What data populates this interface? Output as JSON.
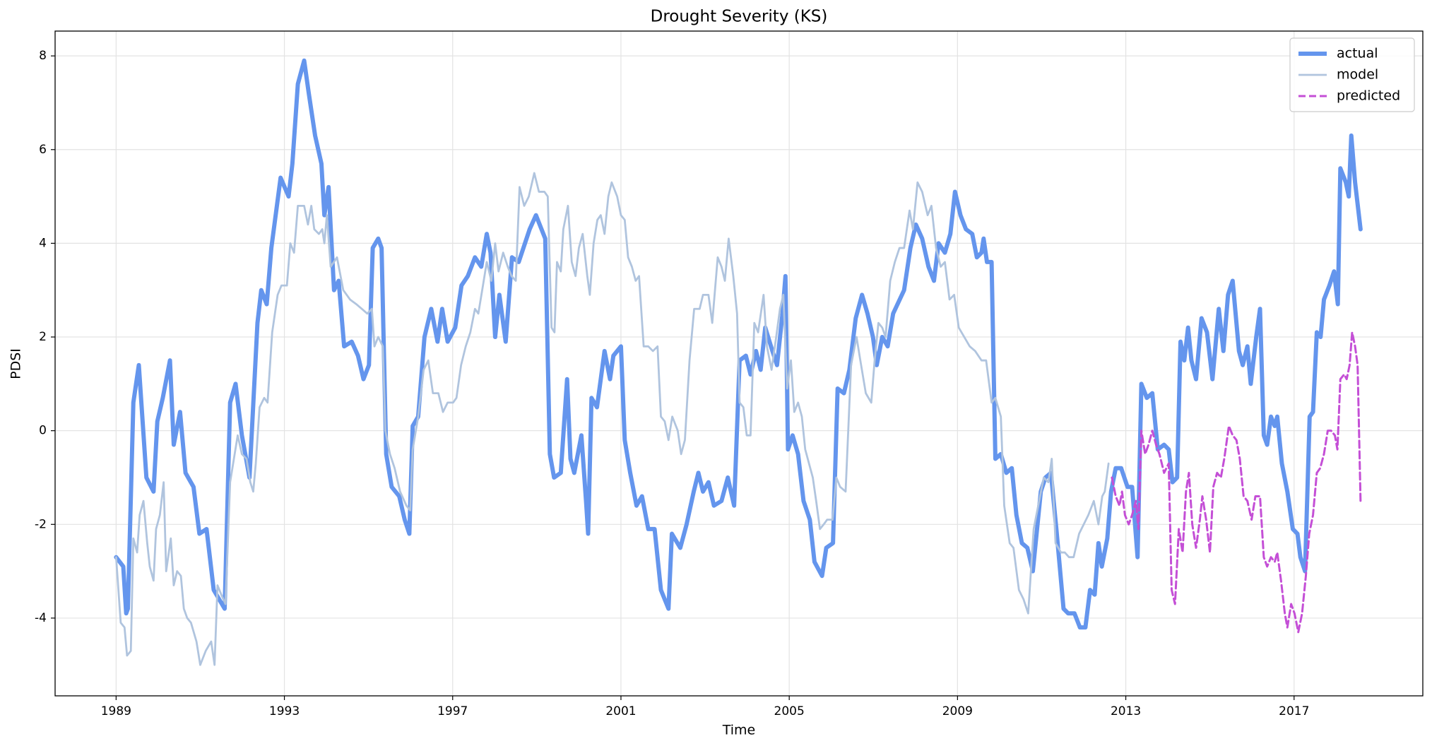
{
  "chart_data": {
    "type": "line",
    "title": "Drought Severity (KS)",
    "x_label": "Time",
    "y_label": "PDSI",
    "xlim": [
      1987.55,
      2020.06
    ],
    "ylim": [
      -5.66,
      8.53
    ],
    "xticks": [
      1989,
      1993,
      1997,
      2001,
      2005,
      2009,
      2013,
      2017
    ],
    "yticks": [
      -4,
      -2,
      0,
      2,
      4,
      6,
      8
    ],
    "grid": true,
    "legend": "upper right",
    "series": [
      {
        "name": "actual",
        "color": "#6495ed",
        "linestyle": "solid",
        "x": [
          1989.0,
          1989.17,
          1989.24,
          1989.28,
          1989.41,
          1989.54,
          1989.72,
          1989.89,
          1989.98,
          1990.11,
          1990.28,
          1990.37,
          1990.52,
          1990.65,
          1990.84,
          1990.98,
          1991.15,
          1991.32,
          1991.58,
          1991.71,
          1991.84,
          1991.99,
          1992.17,
          1992.36,
          1992.45,
          1992.58,
          1992.69,
          1992.91,
          1993.1,
          1993.19,
          1993.32,
          1993.47,
          1993.58,
          1993.73,
          1993.88,
          1993.95,
          1994.05,
          1994.18,
          1994.29,
          1994.42,
          1994.6,
          1994.75,
          1994.88,
          1995.01,
          1995.1,
          1995.23,
          1995.31,
          1995.42,
          1995.55,
          1995.73,
          1995.86,
          1995.97,
          1996.05,
          1996.18,
          1996.33,
          1996.49,
          1996.64,
          1996.75,
          1996.88,
          1997.06,
          1997.21,
          1997.36,
          1997.53,
          1997.68,
          1997.81,
          1997.9,
          1998.01,
          1998.11,
          1998.26,
          1998.41,
          1998.57,
          1998.83,
          1998.98,
          1999.2,
          1999.31,
          1999.41,
          1999.57,
          1999.72,
          1999.8,
          1999.89,
          2000.06,
          2000.17,
          2000.22,
          2000.3,
          2000.43,
          2000.61,
          2000.74,
          2000.82,
          2001.0,
          2001.09,
          2001.22,
          2001.37,
          2001.5,
          2001.65,
          2001.8,
          2001.95,
          2002.13,
          2002.21,
          2002.41,
          2002.56,
          2002.73,
          2002.84,
          2002.95,
          2003.08,
          2003.21,
          2003.39,
          2003.54,
          2003.69,
          2003.82,
          2003.97,
          2004.08,
          2004.21,
          2004.32,
          2004.43,
          2004.6,
          2004.71,
          2004.84,
          2004.91,
          2004.97,
          2005.08,
          2005.21,
          2005.34,
          2005.49,
          2005.6,
          2005.78,
          2005.88,
          2006.04,
          2006.15,
          2006.3,
          2006.43,
          2006.58,
          2006.73,
          2006.86,
          2006.99,
          2007.08,
          2007.21,
          2007.34,
          2007.47,
          2007.73,
          2007.88,
          2008.01,
          2008.16,
          2008.31,
          2008.44,
          2008.55,
          2008.7,
          2008.83,
          2008.94,
          2009.07,
          2009.2,
          2009.35,
          2009.46,
          2009.57,
          2009.62,
          2009.7,
          2009.81,
          2009.9,
          2010.03,
          2010.16,
          2010.29,
          2010.4,
          2010.53,
          2010.66,
          2010.79,
          2010.98,
          2011.09,
          2011.22,
          2011.35,
          2011.52,
          2011.63,
          2011.78,
          2011.91,
          2012.04,
          2012.15,
          2012.26,
          2012.35,
          2012.43,
          2012.56,
          2012.65,
          2012.76,
          2012.89,
          2013.04,
          2013.15,
          2013.28,
          2013.37,
          2013.5,
          2013.63,
          2013.76,
          2013.91,
          2014.02,
          2014.11,
          2014.22,
          2014.3,
          2014.39,
          2014.48,
          2014.56,
          2014.67,
          2014.8,
          2014.93,
          2015.06,
          2015.21,
          2015.32,
          2015.43,
          2015.54,
          2015.69,
          2015.78,
          2015.89,
          2015.97,
          2016.1,
          2016.19,
          2016.28,
          2016.36,
          2016.45,
          2016.54,
          2016.6,
          2016.71,
          2016.84,
          2016.97,
          2017.08,
          2017.15,
          2017.26,
          2017.37,
          2017.45,
          2017.54,
          2017.63,
          2017.71,
          2017.84,
          2017.95,
          2018.04,
          2018.1,
          2018.23,
          2018.3,
          2018.36,
          2018.45,
          2018.58
        ],
        "values": [
          -2.7,
          -2.9,
          -3.9,
          -3.8,
          0.6,
          1.4,
          -1.0,
          -1.3,
          0.2,
          0.7,
          1.5,
          -0.3,
          0.4,
          -0.9,
          -1.2,
          -2.2,
          -2.1,
          -3.4,
          -3.8,
          0.6,
          1.0,
          -0.1,
          -1.0,
          2.3,
          3.0,
          2.7,
          3.9,
          5.4,
          5.0,
          5.7,
          7.4,
          7.9,
          7.2,
          6.3,
          5.7,
          4.6,
          5.2,
          3.0,
          3.2,
          1.8,
          1.9,
          1.6,
          1.1,
          1.4,
          3.9,
          4.1,
          3.9,
          -0.5,
          -1.2,
          -1.4,
          -1.9,
          -2.2,
          0.1,
          0.3,
          2.0,
          2.6,
          1.9,
          2.6,
          1.9,
          2.2,
          3.1,
          3.3,
          3.7,
          3.5,
          4.2,
          3.8,
          2.0,
          2.9,
          1.9,
          3.7,
          3.6,
          4.3,
          4.6,
          4.1,
          -0.5,
          -1.0,
          -0.9,
          1.1,
          -0.6,
          -0.9,
          -0.1,
          -1.5,
          -2.2,
          0.7,
          0.5,
          1.7,
          1.1,
          1.6,
          1.8,
          -0.2,
          -0.9,
          -1.6,
          -1.4,
          -2.1,
          -2.1,
          -3.4,
          -3.8,
          -2.2,
          -2.5,
          -2.0,
          -1.3,
          -0.9,
          -1.3,
          -1.1,
          -1.6,
          -1.5,
          -1.0,
          -1.6,
          1.5,
          1.6,
          1.2,
          1.7,
          1.3,
          2.2,
          1.7,
          1.4,
          2.5,
          3.3,
          -0.4,
          -0.1,
          -0.5,
          -1.5,
          -1.9,
          -2.8,
          -3.1,
          -2.5,
          -2.4,
          0.9,
          0.8,
          1.3,
          2.4,
          2.9,
          2.5,
          2.0,
          1.4,
          2.0,
          1.8,
          2.5,
          3.0,
          3.9,
          4.4,
          4.1,
          3.5,
          3.2,
          4.0,
          3.8,
          4.2,
          5.1,
          4.6,
          4.3,
          4.2,
          3.7,
          3.8,
          4.1,
          3.6,
          3.6,
          -0.6,
          -0.5,
          -0.9,
          -0.8,
          -1.8,
          -2.4,
          -2.5,
          -3.0,
          -1.3,
          -1.0,
          -0.9,
          -2.1,
          -3.8,
          -3.9,
          -3.9,
          -4.2,
          -4.2,
          -3.4,
          -3.5,
          -2.4,
          -2.9,
          -2.3,
          -1.3,
          -0.8,
          -0.8,
          -1.2,
          -1.2,
          -2.7,
          1.0,
          0.7,
          0.8,
          -0.4,
          -0.3,
          -0.4,
          -1.1,
          -1.0,
          1.9,
          1.5,
          2.2,
          1.5,
          1.1,
          2.4,
          2.1,
          1.1,
          2.6,
          1.7,
          2.9,
          3.2,
          1.7,
          1.4,
          1.8,
          1.0,
          2.0,
          2.6,
          -0.1,
          -0.3,
          0.3,
          0.1,
          0.3,
          -0.7,
          -1.3,
          -2.1,
          -2.2,
          -2.7,
          -3.0,
          0.3,
          0.4,
          2.1,
          2.0,
          2.8,
          3.1,
          3.4,
          2.7,
          5.6,
          5.3,
          5.0,
          6.3,
          5.3,
          4.3
        ]
      },
      {
        "name": "model",
        "color": "#b0c4de",
        "linestyle": "solid",
        "x": [
          1989.0,
          1989.11,
          1989.2,
          1989.26,
          1989.35,
          1989.41,
          1989.5,
          1989.56,
          1989.65,
          1989.74,
          1989.8,
          1989.89,
          1989.95,
          1990.04,
          1990.13,
          1990.19,
          1990.3,
          1990.37,
          1990.45,
          1990.54,
          1990.61,
          1990.69,
          1990.78,
          1990.91,
          1991.0,
          1991.13,
          1991.26,
          1991.34,
          1991.41,
          1991.5,
          1991.6,
          1991.71,
          1991.8,
          1991.89,
          1991.99,
          1992.1,
          1992.19,
          1992.26,
          1992.32,
          1992.41,
          1992.52,
          1992.6,
          1992.71,
          1992.84,
          1992.93,
          1993.06,
          1993.14,
          1993.23,
          1993.32,
          1993.47,
          1993.56,
          1993.64,
          1993.71,
          1993.82,
          1993.9,
          1993.95,
          1994.01,
          1994.1,
          1994.25,
          1994.4,
          1994.56,
          1994.71,
          1994.84,
          1994.97,
          1995.08,
          1995.14,
          1995.23,
          1995.34,
          1995.4,
          1995.51,
          1995.62,
          1995.75,
          1995.9,
          1995.99,
          1996.05,
          1996.18,
          1996.31,
          1996.42,
          1996.53,
          1996.66,
          1996.77,
          1996.88,
          1997.01,
          1997.09,
          1997.2,
          1997.31,
          1997.42,
          1997.53,
          1997.61,
          1997.72,
          1997.81,
          1997.92,
          1998.01,
          1998.09,
          1998.2,
          1998.31,
          1998.4,
          1998.5,
          1998.59,
          1998.7,
          1998.81,
          1998.94,
          1999.05,
          1999.18,
          1999.26,
          1999.35,
          1999.42,
          1999.48,
          1999.57,
          1999.63,
          1999.74,
          1999.83,
          1999.92,
          2000.0,
          2000.09,
          2000.2,
          2000.26,
          2000.35,
          2000.44,
          2000.52,
          2000.61,
          2000.7,
          2000.78,
          2000.91,
          2001.0,
          2001.09,
          2001.17,
          2001.26,
          2001.35,
          2001.43,
          2001.54,
          2001.65,
          2001.76,
          2001.87,
          2001.95,
          2002.04,
          2002.13,
          2002.22,
          2002.35,
          2002.43,
          2002.52,
          2002.63,
          2002.74,
          2002.87,
          2002.95,
          2003.08,
          2003.17,
          2003.3,
          2003.39,
          2003.47,
          2003.56,
          2003.67,
          2003.76,
          2003.82,
          2003.91,
          2003.99,
          2004.08,
          2004.17,
          2004.26,
          2004.39,
          2004.47,
          2004.58,
          2004.69,
          2004.78,
          2004.86,
          2004.95,
          2005.04,
          2005.12,
          2005.21,
          2005.3,
          2005.38,
          2005.47,
          2005.56,
          2005.64,
          2005.73,
          2005.82,
          2005.9,
          2006.03,
          2006.12,
          2006.21,
          2006.34,
          2006.47,
          2006.6,
          2006.69,
          2006.82,
          2006.95,
          2007.03,
          2007.12,
          2007.21,
          2007.29,
          2007.4,
          2007.51,
          2007.62,
          2007.73,
          2007.86,
          2007.94,
          2008.05,
          2008.16,
          2008.29,
          2008.38,
          2008.49,
          2008.6,
          2008.7,
          2008.81,
          2008.92,
          2009.03,
          2009.16,
          2009.29,
          2009.42,
          2009.57,
          2009.68,
          2009.81,
          2009.9,
          2010.03,
          2010.11,
          2010.24,
          2010.33,
          2010.46,
          2010.57,
          2010.68,
          2010.81,
          2010.94,
          2011.05,
          2011.16,
          2011.24,
          2011.33,
          2011.46,
          2011.55,
          2011.65,
          2011.76,
          2011.89,
          2012.0,
          2012.11,
          2012.24,
          2012.35,
          2012.44,
          2012.5,
          2012.59
        ],
        "values": [
          -2.7,
          -4.1,
          -4.2,
          -4.8,
          -4.7,
          -2.3,
          -2.6,
          -1.8,
          -1.5,
          -2.4,
          -2.9,
          -3.2,
          -2.1,
          -1.8,
          -1.1,
          -3.0,
          -2.3,
          -3.3,
          -3.0,
          -3.1,
          -3.8,
          -4.0,
          -4.1,
          -4.5,
          -5.0,
          -4.7,
          -4.5,
          -5.0,
          -3.3,
          -3.5,
          -3.7,
          -1.1,
          -0.6,
          -0.1,
          -0.5,
          -0.6,
          -1.1,
          -1.3,
          -0.7,
          0.5,
          0.7,
          0.6,
          2.1,
          2.9,
          3.1,
          3.1,
          4.0,
          3.8,
          4.8,
          4.8,
          4.4,
          4.8,
          4.3,
          4.2,
          4.3,
          4.0,
          4.6,
          3.5,
          3.7,
          3.0,
          2.8,
          2.7,
          2.6,
          2.5,
          2.6,
          1.8,
          2.0,
          1.8,
          0.0,
          -0.5,
          -0.8,
          -1.3,
          -1.6,
          -1.7,
          -0.4,
          0.3,
          1.3,
          1.5,
          0.8,
          0.8,
          0.4,
          0.6,
          0.6,
          0.7,
          1.4,
          1.8,
          2.1,
          2.6,
          2.5,
          3.1,
          3.6,
          3.2,
          4.0,
          3.4,
          3.8,
          3.5,
          3.3,
          3.2,
          5.2,
          4.8,
          5.0,
          5.5,
          5.1,
          5.1,
          5.0,
          2.2,
          2.1,
          3.6,
          3.4,
          4.3,
          4.8,
          3.6,
          3.3,
          3.9,
          4.2,
          3.3,
          2.9,
          4.0,
          4.5,
          4.6,
          4.2,
          5.0,
          5.3,
          5.0,
          4.6,
          4.5,
          3.7,
          3.5,
          3.2,
          3.3,
          1.8,
          1.8,
          1.7,
          1.8,
          0.3,
          0.2,
          -0.2,
          0.3,
          0.0,
          -0.5,
          -0.2,
          1.5,
          2.6,
          2.6,
          2.9,
          2.9,
          2.3,
          3.7,
          3.5,
          3.2,
          4.1,
          3.3,
          2.5,
          0.6,
          0.5,
          -0.1,
          -0.1,
          2.3,
          2.1,
          2.9,
          1.8,
          1.3,
          2.0,
          2.6,
          2.9,
          0.9,
          1.5,
          0.4,
          0.6,
          0.3,
          -0.4,
          -0.7,
          -1.0,
          -1.5,
          -2.1,
          -2.0,
          -1.9,
          -1.9,
          -1.0,
          -1.2,
          -1.3,
          1.4,
          2.0,
          1.5,
          0.8,
          0.6,
          1.5,
          2.3,
          2.2,
          2.0,
          3.2,
          3.6,
          3.9,
          3.9,
          4.7,
          4.3,
          5.3,
          5.1,
          4.6,
          4.8,
          3.9,
          3.5,
          3.6,
          2.8,
          2.9,
          2.2,
          2.0,
          1.8,
          1.7,
          1.5,
          1.5,
          0.6,
          0.7,
          0.3,
          -1.6,
          -2.4,
          -2.5,
          -3.4,
          -3.6,
          -3.9,
          -2.1,
          -1.5,
          -1.0,
          -1.1,
          -0.6,
          -2.4,
          -2.6,
          -2.6,
          -2.7,
          -2.7,
          -2.2,
          -2.0,
          -1.8,
          -1.5,
          -2.0,
          -1.4,
          -1.3,
          -0.7
        ]
      },
      {
        "name": "predicted",
        "color": "#c44fd6",
        "linestyle": "dashed",
        "x": [
          2012.67,
          2012.76,
          2012.85,
          2012.91,
          2012.98,
          2013.07,
          2013.15,
          2013.24,
          2013.3,
          2013.37,
          2013.46,
          2013.54,
          2013.63,
          2013.72,
          2013.8,
          2013.91,
          2014.02,
          2014.09,
          2014.17,
          2014.26,
          2014.35,
          2014.43,
          2014.5,
          2014.58,
          2014.67,
          2014.76,
          2014.82,
          2014.91,
          2015.0,
          2015.08,
          2015.17,
          2015.26,
          2015.34,
          2015.45,
          2015.54,
          2015.63,
          2015.71,
          2015.8,
          2015.89,
          2015.99,
          2016.08,
          2016.19,
          2016.28,
          2016.36,
          2016.45,
          2016.54,
          2016.6,
          2016.69,
          2016.78,
          2016.84,
          2016.93,
          2017.01,
          2017.1,
          2017.19,
          2017.28,
          2017.36,
          2017.45,
          2017.54,
          2017.62,
          2017.71,
          2017.8,
          2017.88,
          2017.97,
          2018.03,
          2018.1,
          2018.19,
          2018.25,
          2018.32,
          2018.38,
          2018.45,
          2018.51,
          2018.58
        ],
        "values": [
          -1.0,
          -1.4,
          -1.6,
          -1.3,
          -1.8,
          -2.0,
          -1.8,
          -1.5,
          -2.1,
          0.0,
          -0.5,
          -0.3,
          0.0,
          -0.3,
          -0.5,
          -0.9,
          -0.7,
          -3.4,
          -3.7,
          -2.1,
          -2.6,
          -1.3,
          -0.9,
          -2.0,
          -2.5,
          -1.9,
          -1.4,
          -1.9,
          -2.6,
          -1.2,
          -0.9,
          -1.0,
          -0.6,
          0.1,
          -0.1,
          -0.2,
          -0.6,
          -1.4,
          -1.5,
          -1.9,
          -1.4,
          -1.4,
          -2.7,
          -2.9,
          -2.7,
          -2.8,
          -2.6,
          -3.2,
          -3.9,
          -4.2,
          -3.7,
          -3.9,
          -4.3,
          -3.9,
          -3.1,
          -2.2,
          -1.8,
          -0.9,
          -0.8,
          -0.5,
          0.0,
          0.0,
          -0.1,
          -0.4,
          1.1,
          1.2,
          1.1,
          1.4,
          2.1,
          1.8,
          1.4,
          -1.5
        ]
      }
    ]
  }
}
